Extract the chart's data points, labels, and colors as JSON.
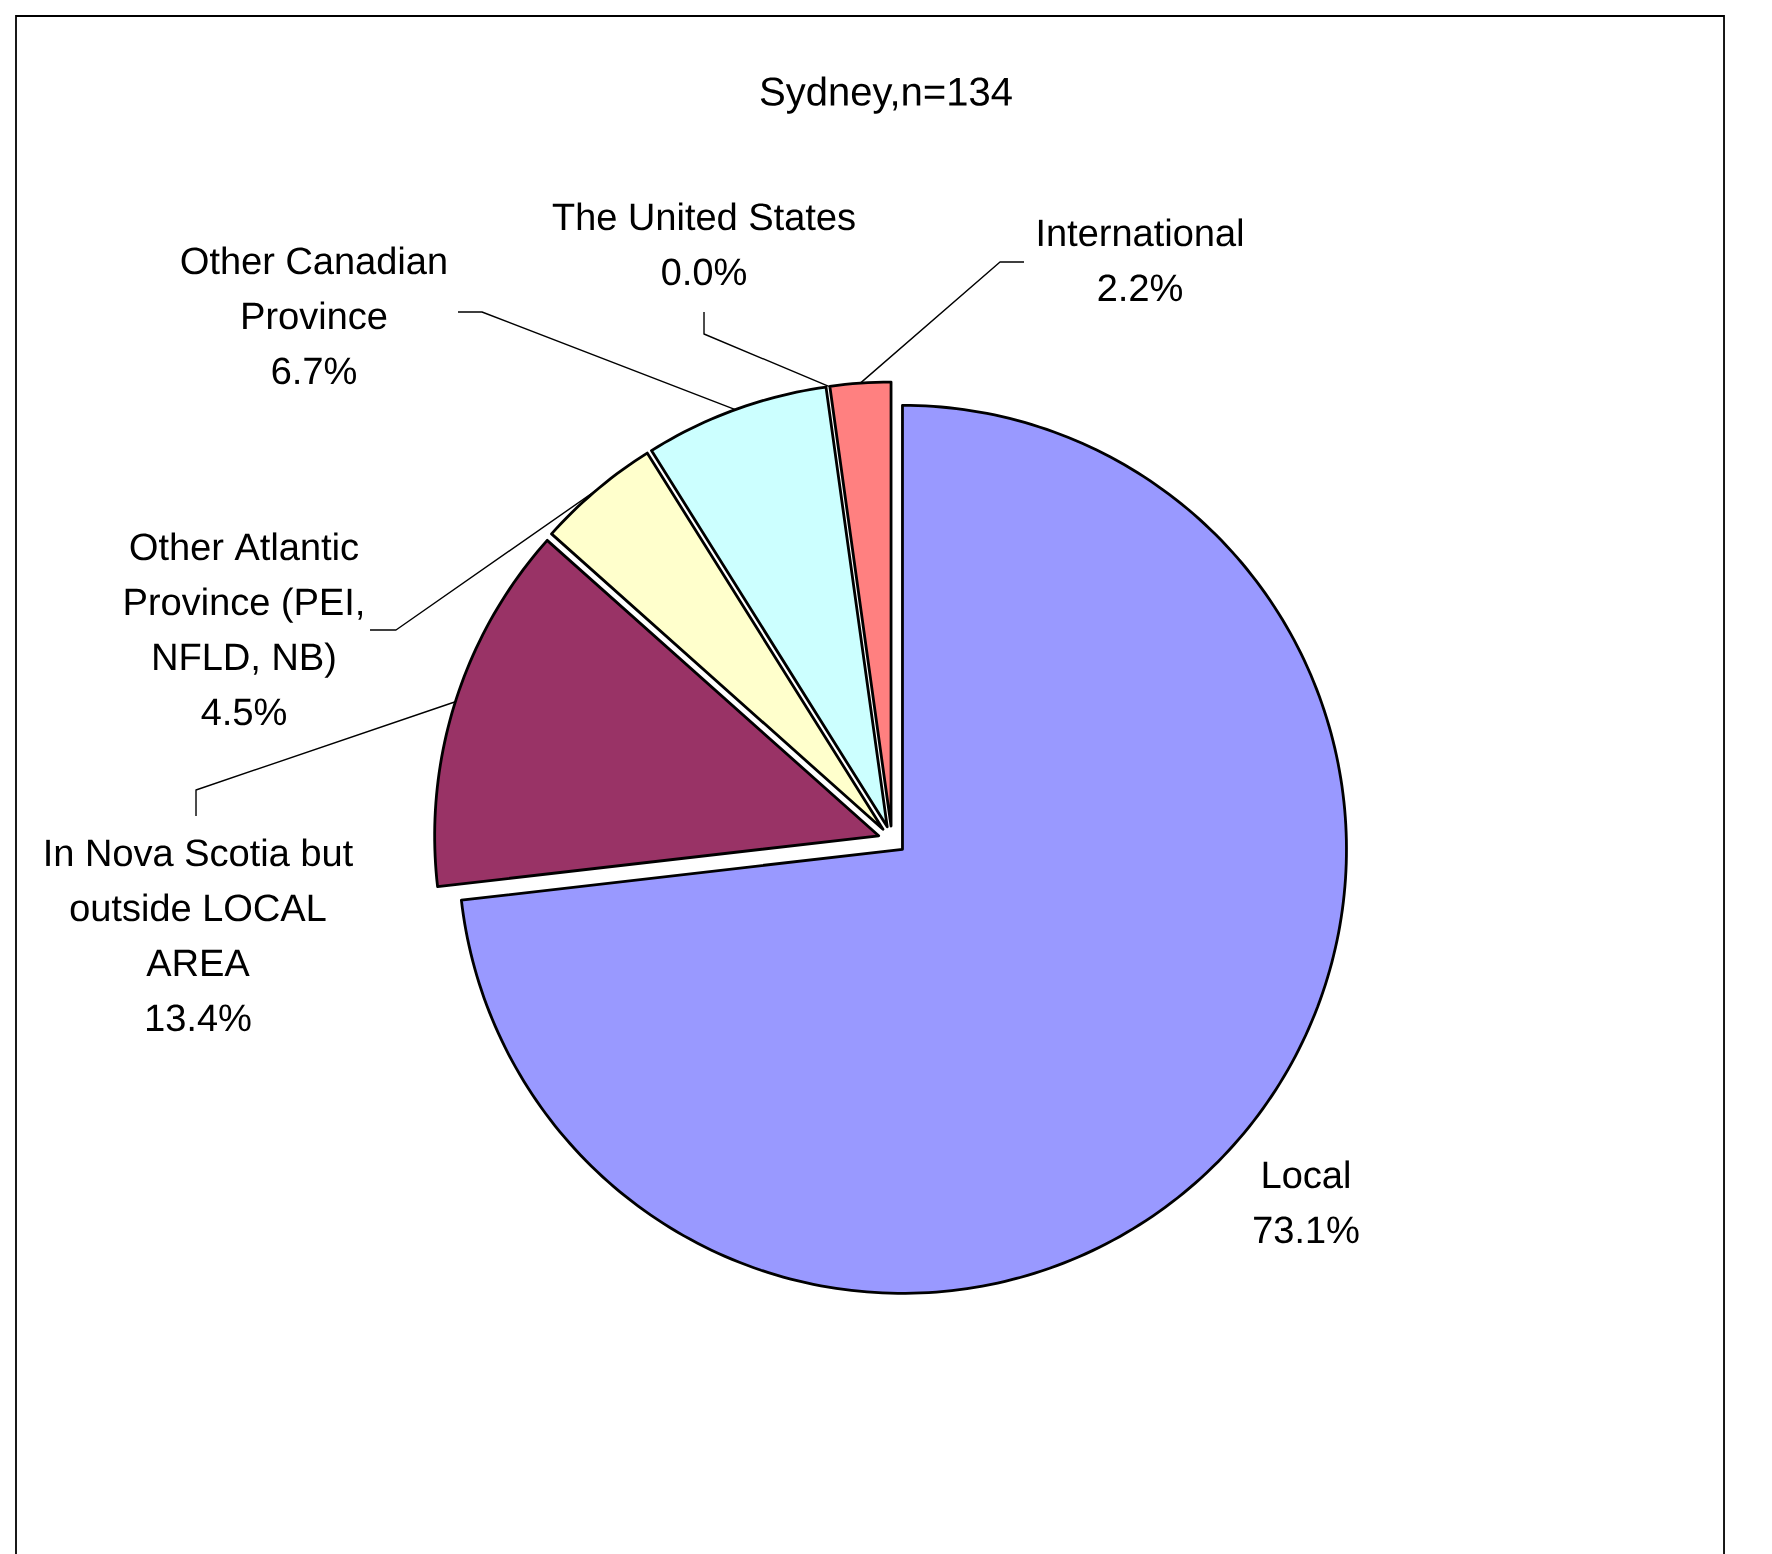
{
  "chart_data": {
    "type": "pie",
    "title": "Sydney,n=134",
    "categories": [
      "Local",
      "In Nova Scotia but outside LOCAL AREA",
      "Other Atlantic Province (PEI, NFLD, NB)",
      "Other Canadian Province",
      "The United States",
      "International"
    ],
    "values": [
      73.1,
      13.4,
      4.5,
      6.7,
      0.0,
      2.2
    ],
    "colors": [
      "#9999ff",
      "#993366",
      "#ffffcc",
      "#ccffff",
      "#660066",
      "#ff8080"
    ],
    "value_labels": [
      "73.1%",
      "13.4%",
      "4.5%",
      "6.7%",
      "0.0%",
      "2.2%"
    ]
  }
}
